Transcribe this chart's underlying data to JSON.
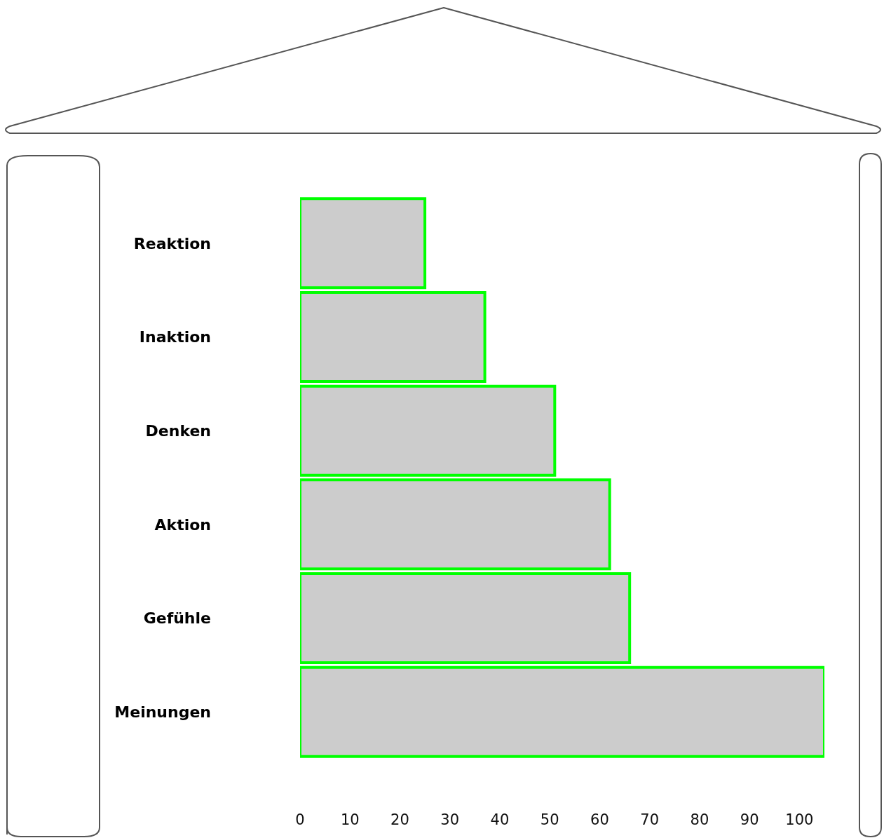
{
  "chart_data": {
    "type": "bar",
    "orientation": "horizontal",
    "categories": [
      "Reaktion",
      "Inaktion",
      "Denken",
      "Aktion",
      "Gefühle",
      "Meinungen"
    ],
    "values": [
      25,
      37,
      51,
      62,
      66,
      105
    ],
    "color": "#cccccc",
    "xlim": [
      0,
      105
    ],
    "xticks": [
      0,
      10,
      20,
      30,
      40,
      50,
      60,
      70,
      80,
      90,
      100
    ],
    "grid": false,
    "legend": false
  }
}
